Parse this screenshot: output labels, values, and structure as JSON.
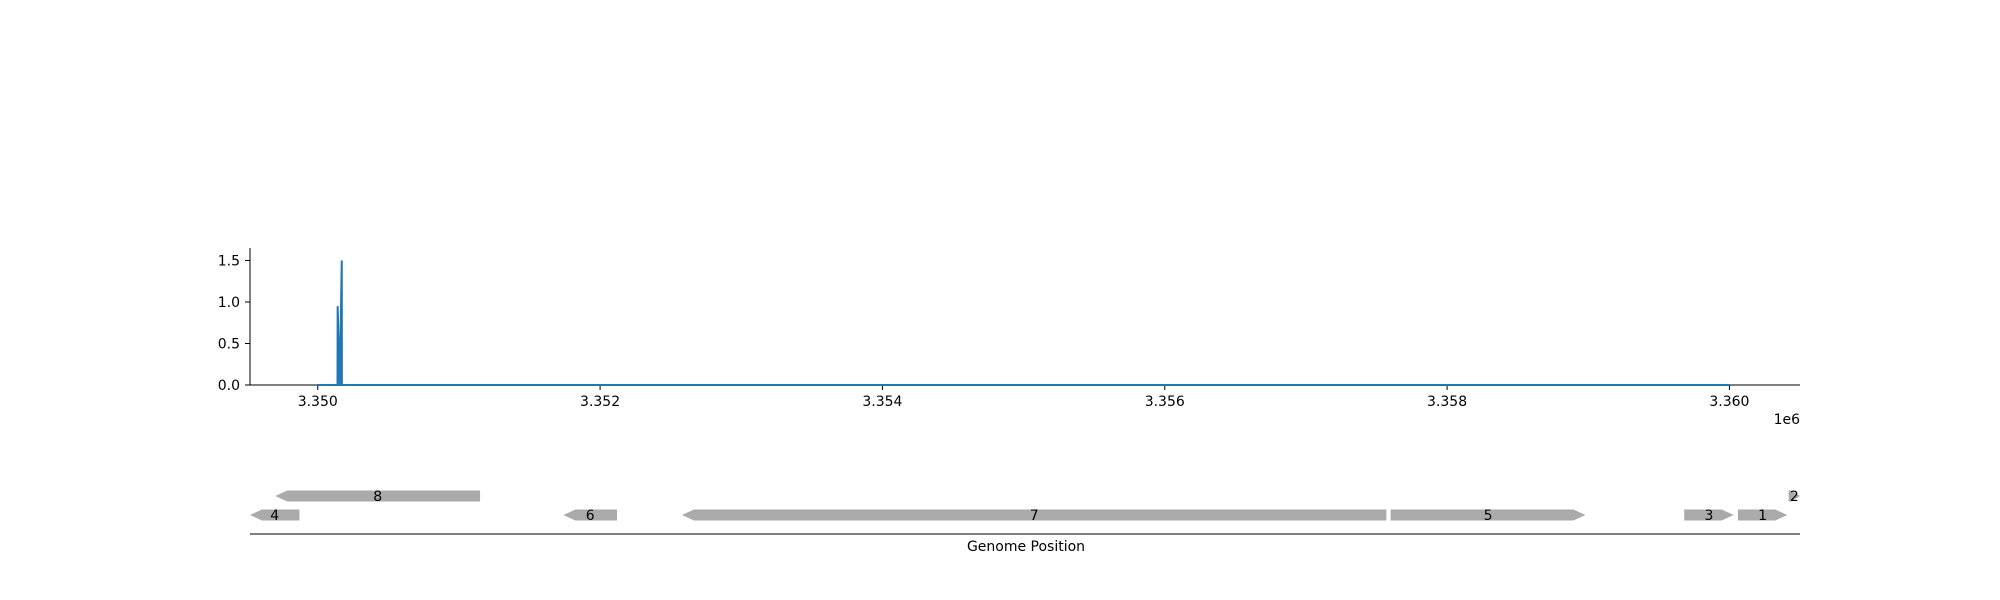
{
  "chart_data": [
    {
      "type": "line",
      "title": "",
      "xlabel": "",
      "ylabel": "",
      "x_offset_label": "1e6",
      "xlim": [
        3349520,
        3360500
      ],
      "ylim": [
        0,
        1.65
      ],
      "x_ticks": [
        3350000,
        3352000,
        3354000,
        3356000,
        3358000,
        3360000
      ],
      "x_tick_labels": [
        "3.350",
        "3.352",
        "3.354",
        "3.356",
        "3.358",
        "3.360"
      ],
      "y_ticks": [
        0.0,
        0.5,
        1.0,
        1.5
      ],
      "y_tick_labels": [
        "0.0",
        "0.5",
        "1.0",
        "1.5"
      ],
      "grid": false,
      "color": "#1f77b4",
      "series": [
        {
          "x": [
            3350000,
            3350130,
            3350140,
            3350141,
            3350155,
            3350156,
            3350170,
            3350171,
            3360000
          ],
          "y": [
            0.0,
            0.0,
            0.0,
            0.95,
            0.0,
            0.0,
            1.5,
            0.0,
            0.0
          ]
        }
      ]
    },
    {
      "type": "gene_track",
      "xlabel": "Genome Position",
      "color": "#aaaaaa",
      "genes": [
        {
          "label": "8",
          "start": 3349700,
          "end": 3351150,
          "strand": -1,
          "row": 2
        },
        {
          "label": "2",
          "start": 3360420,
          "end": 3360500,
          "strand": 1,
          "row": 2
        },
        {
          "label": "4",
          "start": 3349520,
          "end": 3349870,
          "strand": -1,
          "row": 1
        },
        {
          "label": "6",
          "start": 3351740,
          "end": 3352120,
          "strand": -1,
          "row": 1
        },
        {
          "label": "7",
          "start": 3352580,
          "end": 3357570,
          "strand": -1,
          "row": 1
        },
        {
          "label": "5",
          "start": 3357600,
          "end": 3358980,
          "strand": 1,
          "row": 1
        },
        {
          "label": "3",
          "start": 3359680,
          "end": 3360030,
          "strand": 1,
          "row": 1
        },
        {
          "label": "1",
          "start": 3360060,
          "end": 3360410,
          "strand": 1,
          "row": 1
        }
      ]
    }
  ]
}
